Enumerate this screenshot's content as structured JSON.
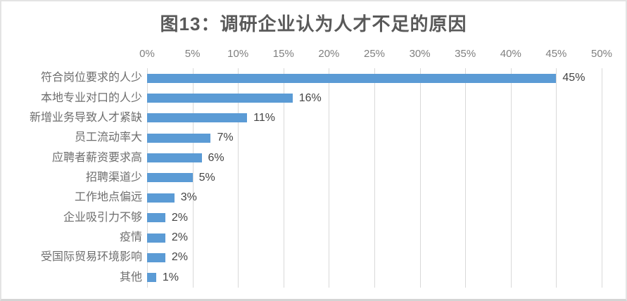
{
  "figure": {
    "background": "#ffffff",
    "border_color": "#e3e3e3"
  },
  "chart_data": {
    "type": "bar",
    "orientation": "horizontal",
    "title": "图13：调研企业认为人才不足的原因",
    "categories": [
      "符合岗位要求的人少",
      "本地专业对口的人少",
      "新增业务导致人才紧缺",
      "员工流动率大",
      "应聘者薪资要求高",
      "招聘渠道少",
      "工作地点偏远",
      "企业吸引力不够",
      "疫情",
      "受国际贸易环境影响",
      "其他"
    ],
    "values": [
      45,
      16,
      11,
      7,
      6,
      5,
      3,
      2,
      2,
      2,
      1
    ],
    "value_labels": [
      "45%",
      "16%",
      "11%",
      "7%",
      "6%",
      "5%",
      "3%",
      "2%",
      "2%",
      "2%",
      "1%"
    ],
    "xlim": [
      0,
      50
    ],
    "x_tick_values": [
      0,
      5,
      10,
      15,
      20,
      25,
      30,
      35,
      40,
      45,
      50
    ],
    "x_tick_labels": [
      "0%",
      "5%",
      "10%",
      "15%",
      "20%",
      "25%",
      "30%",
      "35%",
      "40%",
      "45%",
      "50%"
    ],
    "x_axis_position": "top",
    "grid": "vertical",
    "legend": "none",
    "colors": {
      "bar": "#5B9BD5",
      "gridline": "#D9D9D9",
      "title": "#595959",
      "tick_label": "#7F7F7F",
      "category_label": "#6E6E6E",
      "value_label": "#444444"
    }
  }
}
